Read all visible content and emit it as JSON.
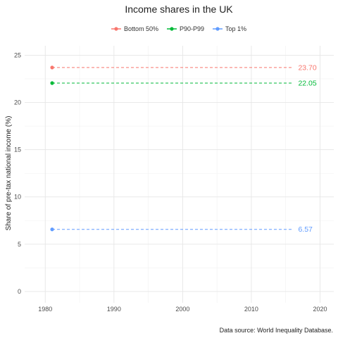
{
  "chart_data": {
    "type": "line",
    "title": "Income shares in the UK",
    "xlabel": "",
    "ylabel": "Share of pre-tax national income (%)",
    "caption": "Data source: World Inequality Database.",
    "xlim": [
      1977,
      2022
    ],
    "ylim": [
      -1.2,
      26
    ],
    "x_ticks": [
      1980,
      1990,
      2000,
      2010,
      2020
    ],
    "y_ticks": [
      0,
      5,
      10,
      15,
      20,
      25
    ],
    "grid": true,
    "legend_position": "top",
    "series": [
      {
        "name": "Bottom 50%",
        "color": "#F8766D",
        "x": [
          1981,
          2016
        ],
        "values": [
          23.7,
          23.7
        ],
        "label": "23.70",
        "marker_x": 1981
      },
      {
        "name": "P90-P99",
        "color": "#00BA38",
        "x": [
          1981,
          2016
        ],
        "values": [
          22.05,
          22.05
        ],
        "label": "22.05",
        "marker_x": 1981
      },
      {
        "name": "Top 1%",
        "color": "#619CFF",
        "x": [
          1981,
          2016
        ],
        "values": [
          6.57,
          6.57
        ],
        "label": "6.57",
        "marker_x": 1981
      }
    ]
  }
}
